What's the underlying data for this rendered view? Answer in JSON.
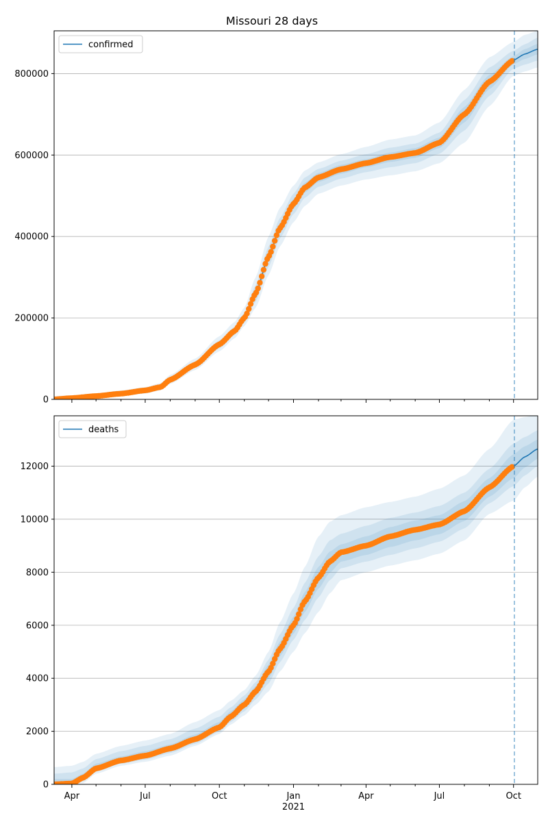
{
  "title": "Missouri 28 days",
  "colors": {
    "model_line": "#1f77b4",
    "band": "#1f77b4",
    "observed": "#ff7f0e",
    "grid": "#b0b0b0",
    "forecast_marker": "#1f77b4"
  },
  "chart_data": [
    {
      "type": "line",
      "legend": "confirmed",
      "legend_position": "upper-left",
      "grid_y": true,
      "x_range": [
        "2020-03-10",
        "2021-10-31"
      ],
      "ylim": [
        0,
        905000
      ],
      "yticks": [
        0,
        200000,
        400000,
        600000,
        800000
      ],
      "ytick_labels": [
        "0",
        "200000",
        "400000",
        "600000",
        "800000"
      ],
      "forecast_start": "2021-10-02",
      "model": {
        "x": [
          "2020-03-10",
          "2020-04-01",
          "2020-05-01",
          "2020-06-01",
          "2020-07-01",
          "2020-07-20",
          "2020-08-01",
          "2020-09-01",
          "2020-10-01",
          "2020-10-20",
          "2020-11-01",
          "2020-11-15",
          "2020-12-01",
          "2020-12-15",
          "2021-01-01",
          "2021-01-15",
          "2021-02-01",
          "2021-03-01",
          "2021-04-01",
          "2021-05-01",
          "2021-06-01",
          "2021-07-01",
          "2021-08-01",
          "2021-09-01",
          "2021-10-01",
          "2021-10-15",
          "2021-10-31"
        ],
        "y": [
          0,
          3000,
          8000,
          14000,
          22000,
          30000,
          48000,
          85000,
          135000,
          168000,
          200000,
          260000,
          350000,
          420000,
          480000,
          520000,
          545000,
          565000,
          580000,
          595000,
          605000,
          630000,
          700000,
          780000,
          833000,
          848000,
          860000
        ],
        "bands": [
          {
            "lower": [
              0,
              0,
              2000,
              8000,
              14000,
              22000,
              38000,
              72000,
              118000,
              150000,
              180000,
              225000,
              305000,
              375000,
              435000,
              475000,
              505000,
              525000,
              540000,
              550000,
              560000,
              580000,
              630000,
              720000,
              795000,
              805000,
              815000
            ],
            "upper": [
              8000,
              10000,
              15000,
              22000,
              30000,
              40000,
              60000,
              100000,
              155000,
              190000,
              225000,
              300000,
              400000,
              470000,
              525000,
              562000,
              582000,
              602000,
              620000,
              638000,
              648000,
              680000,
              760000,
              840000,
              878000,
              895000,
              905000
            ]
          },
          {
            "lower": [
              0,
              0,
              4000,
              10000,
              17000,
              25000,
              42000,
              78000,
              125000,
              158000,
              188000,
              240000,
              325000,
              395000,
              455000,
              495000,
              522000,
              542000,
              558000,
              570000,
              580000,
              603000,
              660000,
              745000,
              812000,
              822000,
              832000
            ],
            "upper": [
              5000,
              7000,
              12000,
              18000,
              27000,
              35000,
              54000,
              93000,
              145000,
              178000,
              212000,
              280000,
              375000,
              445000,
              505000,
              545000,
              566000,
              586000,
              602000,
              618000,
              628000,
              655000,
              735000,
              815000,
              856000,
              872000,
              888000
            ]
          },
          {
            "lower": [
              0,
              1000,
              6000,
              12000,
              19000,
              27000,
              45000,
              82000,
              130000,
              163000,
              194000,
              250000,
              338000,
              408000,
              468000,
              508000,
              534000,
              554000,
              570000,
              583000,
              593000,
              617000,
              680000,
              762000,
              823000,
              836000,
              847000
            ],
            "upper": [
              3000,
              5000,
              10000,
              16000,
              25000,
              33000,
              51000,
              89000,
              140000,
              173000,
              206000,
              270000,
              362000,
              432000,
              492000,
              532000,
              556000,
              576000,
              590000,
              606000,
              617000,
              643000,
              718000,
              797000,
              843000,
              860000,
              873000
            ]
          }
        ]
      },
      "observed": {
        "x": [
          "2020-03-10",
          "2020-04-01",
          "2020-05-01",
          "2020-06-01",
          "2020-07-01",
          "2020-07-20",
          "2020-08-01",
          "2020-09-01",
          "2020-10-01",
          "2020-10-20",
          "2020-11-01",
          "2020-11-15",
          "2020-12-01",
          "2020-12-15",
          "2021-01-01",
          "2021-01-15",
          "2021-02-01",
          "2021-03-01",
          "2021-04-01",
          "2021-05-01",
          "2021-06-01",
          "2021-07-01",
          "2021-08-01",
          "2021-09-01",
          "2021-10-01"
        ],
        "y": [
          0,
          3000,
          8000,
          14000,
          22000,
          30000,
          48000,
          85000,
          135000,
          168000,
          200000,
          260000,
          350000,
          420000,
          480000,
          520000,
          545000,
          565000,
          580000,
          595000,
          605000,
          630000,
          700000,
          780000,
          833000
        ]
      }
    },
    {
      "type": "line",
      "legend": "deaths",
      "legend_position": "upper-left",
      "grid_y": true,
      "x_range": [
        "2020-03-10",
        "2021-10-31"
      ],
      "ylim": [
        0,
        13900
      ],
      "yticks": [
        0,
        2000,
        4000,
        6000,
        8000,
        10000,
        12000
      ],
      "ytick_labels": [
        "0",
        "2000",
        "4000",
        "6000",
        "8000",
        "10000",
        "12000"
      ],
      "forecast_start": "2021-10-02",
      "xticks": [
        "2020-04-01",
        "2020-07-01",
        "2020-10-01",
        "2021-01-01",
        "2021-04-01",
        "2021-07-01",
        "2021-10-01"
      ],
      "xtick_labels": [
        "Apr",
        "Jul",
        "Oct",
        "Jan",
        "Apr",
        "Jul",
        "Oct"
      ],
      "xlabel_year": "2021",
      "model": {
        "x": [
          "2020-03-10",
          "2020-04-01",
          "2020-04-15",
          "2020-05-01",
          "2020-06-01",
          "2020-07-01",
          "2020-08-01",
          "2020-09-01",
          "2020-10-01",
          "2020-10-15",
          "2020-11-01",
          "2020-11-15",
          "2020-12-01",
          "2020-12-15",
          "2021-01-01",
          "2021-01-15",
          "2021-02-01",
          "2021-02-15",
          "2021-03-01",
          "2021-04-01",
          "2021-05-01",
          "2021-06-01",
          "2021-07-01",
          "2021-08-01",
          "2021-09-01",
          "2021-10-01",
          "2021-10-15",
          "2021-10-31"
        ],
        "y": [
          0,
          30,
          250,
          600,
          900,
          1080,
          1350,
          1700,
          2150,
          2550,
          3000,
          3500,
          4250,
          5100,
          6000,
          6900,
          7800,
          8400,
          8750,
          9000,
          9350,
          9600,
          9800,
          10300,
          11200,
          12000,
          12350,
          12650
        ],
        "bands": [
          {
            "lower": [
              0,
              0,
              50,
              400,
              700,
              850,
              1080,
              1450,
              1900,
              2250,
              2600,
              3000,
              3500,
              4250,
              5000,
              5700,
              6500,
              7200,
              7700,
              8000,
              8250,
              8450,
              8700,
              9200,
              10200,
              10700,
              11200,
              11600
            ],
            "upper": [
              650,
              700,
              850,
              1150,
              1450,
              1650,
              1900,
              2350,
              2800,
              3150,
              3550,
              4100,
              5000,
              6100,
              7200,
              8200,
              9350,
              9900,
              10150,
              10450,
              10650,
              10850,
              11150,
              11650,
              12650,
              13750,
              13850,
              13950
            ]
          },
          {
            "lower": [
              0,
              0,
              120,
              480,
              780,
              930,
              1180,
              1530,
              1980,
              2350,
              2750,
              3200,
              3800,
              4600,
              5450,
              6200,
              7050,
              7700,
              8150,
              8400,
              8650,
              8900,
              9150,
              9650,
              10600,
              11250,
              11650,
              12000
            ],
            "upper": [
              400,
              450,
              600,
              950,
              1250,
              1450,
              1700,
              2100,
              2550,
              2900,
              3350,
              3850,
              4700,
              5650,
              6650,
              7600,
              8600,
              9200,
              9450,
              9750,
              10050,
              10250,
              10500,
              11000,
              11900,
              12850,
              13100,
              13350
            ]
          },
          {
            "lower": [
              0,
              0,
              180,
              520,
              830,
              990,
              1250,
              1600,
              2050,
              2430,
              2850,
              3330,
              3990,
              4820,
              5680,
              6500,
              7380,
              7980,
              8400,
              8650,
              8950,
              9200,
              9430,
              9930,
              10850,
              11550,
              11950,
              12280
            ],
            "upper": [
              200,
              200,
              400,
              780,
              1050,
              1250,
              1500,
              1880,
              2350,
              2750,
              3200,
              3700,
              4520,
              5380,
              6320,
              7250,
              8200,
              8780,
              9050,
              9350,
              9700,
              9950,
              10150,
              10680,
              11550,
              12450,
              12750,
              13000
            ]
          }
        ]
      },
      "observed": {
        "x": [
          "2020-03-10",
          "2020-04-01",
          "2020-04-15",
          "2020-05-01",
          "2020-06-01",
          "2020-07-01",
          "2020-08-01",
          "2020-09-01",
          "2020-10-01",
          "2020-10-15",
          "2020-11-01",
          "2020-11-15",
          "2020-12-01",
          "2020-12-15",
          "2021-01-01",
          "2021-01-15",
          "2021-02-01",
          "2021-02-15",
          "2021-03-01",
          "2021-04-01",
          "2021-05-01",
          "2021-06-01",
          "2021-07-01",
          "2021-08-01",
          "2021-09-01",
          "2021-10-01"
        ],
        "y": [
          0,
          30,
          250,
          600,
          900,
          1080,
          1350,
          1700,
          2150,
          2550,
          3000,
          3500,
          4250,
          5100,
          6000,
          6900,
          7800,
          8400,
          8750,
          9000,
          9350,
          9600,
          9800,
          10300,
          11200,
          12000
        ]
      }
    }
  ]
}
